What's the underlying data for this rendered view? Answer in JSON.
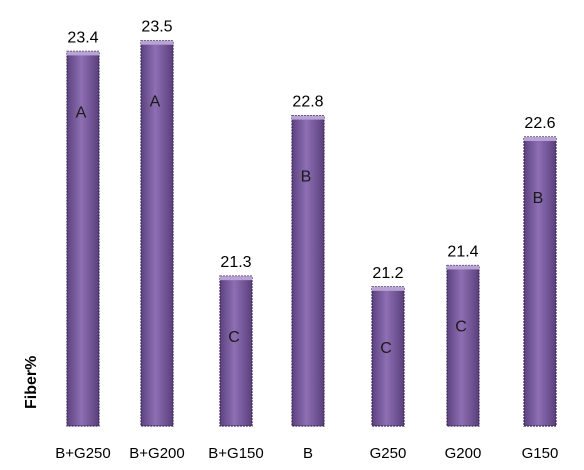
{
  "chart_data": {
    "type": "bar",
    "categories": [
      "B+G250",
      "B+G200",
      "B+G150",
      "B",
      "G250",
      "G200",
      "G150"
    ],
    "values": [
      23.4,
      23.5,
      21.3,
      22.8,
      21.2,
      21.4,
      22.6
    ],
    "value_labels": [
      "23.4",
      "23.5",
      "21.3",
      "22.8",
      "21.2",
      "21.4",
      "22.6"
    ],
    "group_letters": [
      "A",
      "A",
      "C",
      "B",
      "C",
      "C",
      "B"
    ],
    "title": "",
    "xlabel": "",
    "ylabel": "Fiber%",
    "ylim": [
      19.9,
      23.6
    ],
    "grid": false,
    "legend": "none",
    "bar_color": "#7a5a9e",
    "bar_edge_color": "#3a2856"
  }
}
